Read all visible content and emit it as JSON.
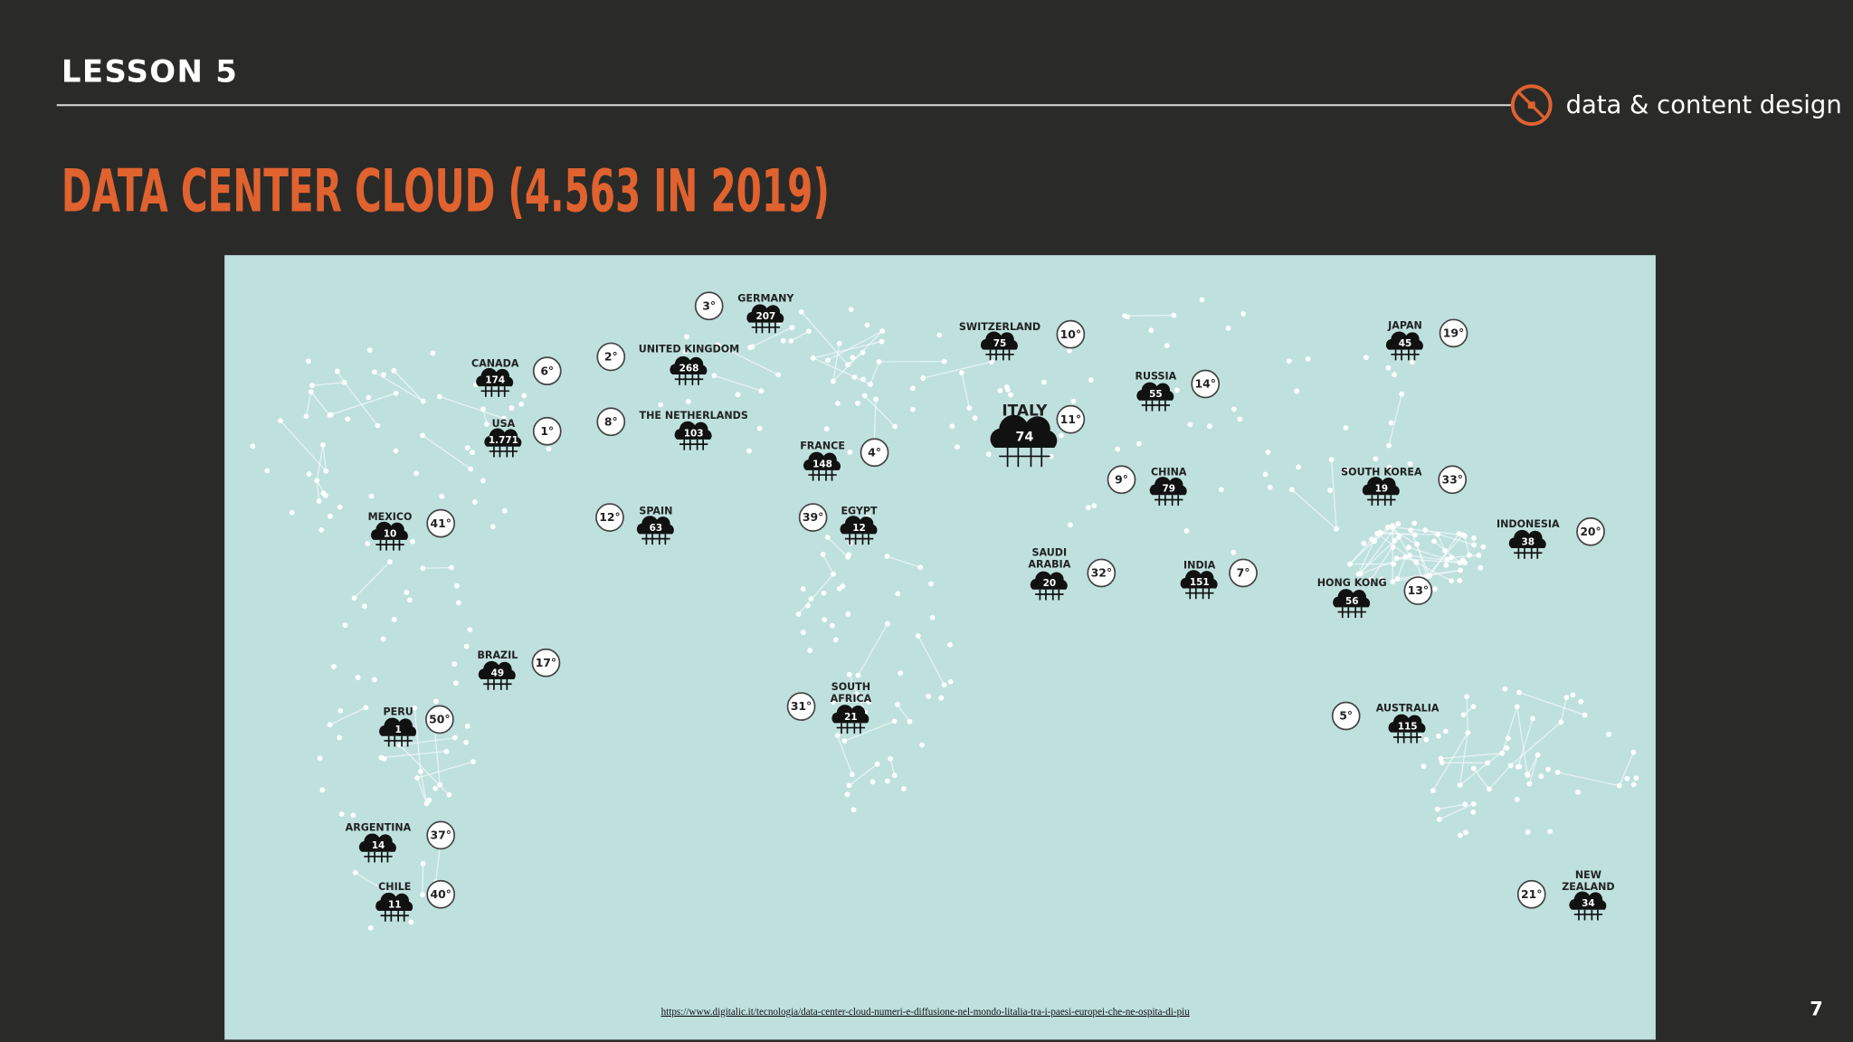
{
  "header": {
    "lesson": "LESSON 5",
    "brand": "data & content design"
  },
  "title": "DATA CENTER CLOUD (4.563 IN 2019)",
  "map": {
    "countries": [
      {
        "name": "GERMANY",
        "count": "207",
        "rank": "3°"
      },
      {
        "name": "UNITED KINGDOM",
        "count": "268",
        "rank": "2°"
      },
      {
        "name": "CANADA",
        "count": "174",
        "rank": "6°"
      },
      {
        "name": "USA",
        "count": "1.771",
        "rank": "1°"
      },
      {
        "name": "THE NETHERLANDS",
        "count": "103",
        "rank": "8°"
      },
      {
        "name": "FRANCE",
        "count": "148",
        "rank": "4°"
      },
      {
        "name": "SPAIN",
        "count": "63",
        "rank": "12°"
      },
      {
        "name": "EGYPT",
        "count": "12",
        "rank": "39°"
      },
      {
        "name": "SWITZERLAND",
        "count": "75",
        "rank": "10°"
      },
      {
        "name": "ITALY",
        "count": "74",
        "rank": "11°"
      },
      {
        "name": "RUSSIA",
        "count": "55",
        "rank": "14°"
      },
      {
        "name": "CHINA",
        "count": "79",
        "rank": "9°"
      },
      {
        "name": "JAPAN",
        "count": "45",
        "rank": "19°"
      },
      {
        "name": "SOUTH KOREA",
        "count": "19",
        "rank": "33°"
      },
      {
        "name": "INDONESIA",
        "count": "38",
        "rank": "20°"
      },
      {
        "name": "MEXICO",
        "count": "10",
        "rank": "41°"
      },
      {
        "name": [
          "SAUDI",
          "ARABIA"
        ],
        "count": "20",
        "rank": "32°"
      },
      {
        "name": "INDIA",
        "count": "151",
        "rank": "7°"
      },
      {
        "name": "HONG KONG",
        "count": "56",
        "rank": "13°"
      },
      {
        "name": "BRAZIL",
        "count": "49",
        "rank": "17°"
      },
      {
        "name": "PERU",
        "count": "1",
        "rank": "50°"
      },
      {
        "name": [
          "SOUTH",
          "AFRICA"
        ],
        "count": "21",
        "rank": "31°"
      },
      {
        "name": "AUSTRALIA",
        "count": "115",
        "rank": "5°"
      },
      {
        "name": "ARGENTINA",
        "count": "14",
        "rank": "37°"
      },
      {
        "name": "CHILE",
        "count": "11",
        "rank": "40°"
      },
      {
        "name": [
          "NEW",
          "ZEALAND"
        ],
        "count": "34",
        "rank": "21°"
      }
    ],
    "source": "https://www.digitalic.it/tecnologia/data-center-cloud-numeri-e-diffusione-nel-mondo-litalia-tra-i-paesi-europei-che-ne-ospita-di-piu"
  },
  "page_number": "7"
}
